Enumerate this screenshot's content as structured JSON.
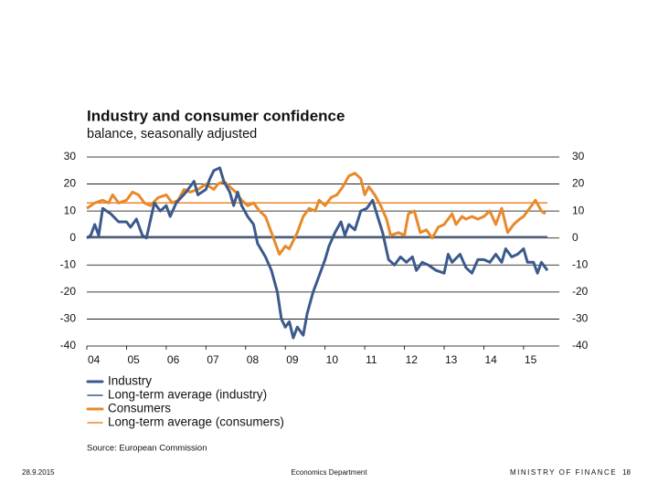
{
  "chart_data": {
    "type": "line",
    "title": "Industry and consumer confidence",
    "subtitle": "balance, seasonally adjusted",
    "source": "Source: European Commission",
    "xlim": [
      2004,
      2015.9
    ],
    "xticks": [
      {
        "value": 2004,
        "label": "04"
      },
      {
        "value": 2005,
        "label": "05"
      },
      {
        "value": 2006,
        "label": "06"
      },
      {
        "value": 2007,
        "label": "07"
      },
      {
        "value": 2008,
        "label": "08"
      },
      {
        "value": 2009,
        "label": "09"
      },
      {
        "value": 2010,
        "label": "10"
      },
      {
        "value": 2011,
        "label": "11"
      },
      {
        "value": 2012,
        "label": "12"
      },
      {
        "value": 2013,
        "label": "13"
      },
      {
        "value": 2014,
        "label": "14"
      },
      {
        "value": 2015,
        "label": "15"
      }
    ],
    "ylim": [
      -40,
      30
    ],
    "yticks": [
      -40,
      -30,
      -20,
      -10,
      0,
      10,
      20,
      30
    ],
    "y2lim": [
      -40,
      30
    ],
    "y2ticks": [
      -40,
      -30,
      -20,
      -10,
      0,
      10,
      20,
      30
    ],
    "grid": true,
    "series": [
      {
        "name": "Industry",
        "color": "#3b5a8c",
        "width": 3,
        "x": [
          2004.0,
          2004.1,
          2004.2,
          2004.3,
          2004.4,
          2004.6,
          2004.8,
          2005.0,
          2005.1,
          2005.25,
          2005.4,
          2005.5,
          2005.7,
          2005.85,
          2006.0,
          2006.1,
          2006.25,
          2006.5,
          2006.7,
          2006.8,
          2007.0,
          2007.1,
          2007.2,
          2007.35,
          2007.45,
          2007.6,
          2007.7,
          2007.8,
          2007.9,
          2008.05,
          2008.2,
          2008.3,
          2008.5,
          2008.65,
          2008.8,
          2008.9,
          2009.0,
          2009.1,
          2009.2,
          2009.3,
          2009.45,
          2009.55,
          2009.7,
          2009.85,
          2010.0,
          2010.1,
          2010.25,
          2010.4,
          2010.5,
          2010.6,
          2010.75,
          2010.9,
          2011.05,
          2011.2,
          2011.3,
          2011.45,
          2011.6,
          2011.75,
          2011.9,
          2012.05,
          2012.2,
          2012.3,
          2012.45,
          2012.6,
          2012.8,
          2013.0,
          2013.1,
          2013.2,
          2013.4,
          2013.55,
          2013.7,
          2013.85,
          2014.0,
          2014.15,
          2014.3,
          2014.45,
          2014.55,
          2014.7,
          2014.85,
          2015.0,
          2015.1,
          2015.25,
          2015.35,
          2015.45,
          2015.6
        ],
        "values": [
          0,
          1,
          5,
          1,
          11,
          9,
          6,
          6,
          4,
          7,
          1,
          0,
          13,
          10,
          12,
          8,
          13,
          17,
          21,
          16,
          18,
          22,
          25,
          26,
          21,
          17,
          12,
          17,
          12,
          8,
          5,
          -2,
          -7,
          -12,
          -20,
          -30,
          -33,
          -31,
          -37,
          -33,
          -36,
          -28,
          -20,
          -14,
          -8,
          -3,
          2,
          6,
          1,
          5,
          3,
          10,
          11,
          14,
          9,
          2,
          -8,
          -10,
          -7,
          -9,
          -7,
          -12,
          -9,
          -10,
          -12,
          -13,
          -6,
          -9,
          -6,
          -11,
          -13,
          -8,
          -8,
          -9,
          -6,
          -9,
          -4,
          -7,
          -6,
          -4,
          -9,
          -9,
          -13,
          -9,
          -12
        ]
      },
      {
        "name": "Long-term average (industry)",
        "color": "#3b5a8c",
        "width": 1.5,
        "x": [
          2004.0,
          2015.6
        ],
        "values": [
          0.5,
          0.5
        ]
      },
      {
        "name": "Consumers",
        "color": "#e8892b",
        "width": 3,
        "x": [
          2004.0,
          2004.2,
          2004.4,
          2004.55,
          2004.65,
          2004.8,
          2005.0,
          2005.15,
          2005.3,
          2005.45,
          2005.6,
          2005.8,
          2006.0,
          2006.15,
          2006.3,
          2006.45,
          2006.6,
          2006.8,
          2007.0,
          2007.2,
          2007.3,
          2007.45,
          2007.6,
          2007.75,
          2007.9,
          2008.05,
          2008.2,
          2008.35,
          2008.5,
          2008.7,
          2008.85,
          2009.0,
          2009.1,
          2009.3,
          2009.45,
          2009.6,
          2009.75,
          2009.85,
          2010.0,
          2010.15,
          2010.3,
          2010.45,
          2010.6,
          2010.75,
          2010.9,
          2011.0,
          2011.1,
          2011.25,
          2011.4,
          2011.55,
          2011.65,
          2011.85,
          2012.0,
          2012.1,
          2012.25,
          2012.4,
          2012.55,
          2012.7,
          2012.85,
          2013.0,
          2013.2,
          2013.3,
          2013.45,
          2013.55,
          2013.7,
          2013.85,
          2014.0,
          2014.15,
          2014.3,
          2014.45,
          2014.6,
          2014.75,
          2014.9,
          2015.0,
          2015.15,
          2015.3,
          2015.45,
          2015.55
        ],
        "values": [
          11,
          13,
          14,
          13,
          16,
          13,
          14,
          17,
          16,
          13,
          12,
          15,
          16,
          13,
          14,
          18,
          17,
          18,
          20,
          18,
          20,
          21,
          19,
          17,
          14,
          12,
          13,
          10,
          8,
          0,
          -6,
          -3,
          -4,
          2,
          8,
          11,
          10,
          14,
          12,
          15,
          16,
          19,
          23,
          24,
          22,
          16,
          19,
          16,
          12,
          7,
          1,
          2,
          1,
          9,
          10,
          2,
          3,
          0,
          4,
          5,
          9,
          5,
          8,
          7,
          8,
          7,
          8,
          10,
          5,
          11,
          2,
          5,
          7,
          8,
          11,
          14,
          10,
          9
        ]
      },
      {
        "name": "Long-term average (consumers)",
        "color": "#e8892b",
        "width": 1.5,
        "x": [
          2004.0,
          2015.6
        ],
        "values": [
          13,
          13
        ]
      }
    ]
  },
  "footer": {
    "date": "28.9.2015",
    "department": "Economics Department",
    "ministry": "MINISTRY OF FINANCE",
    "page": "18"
  }
}
